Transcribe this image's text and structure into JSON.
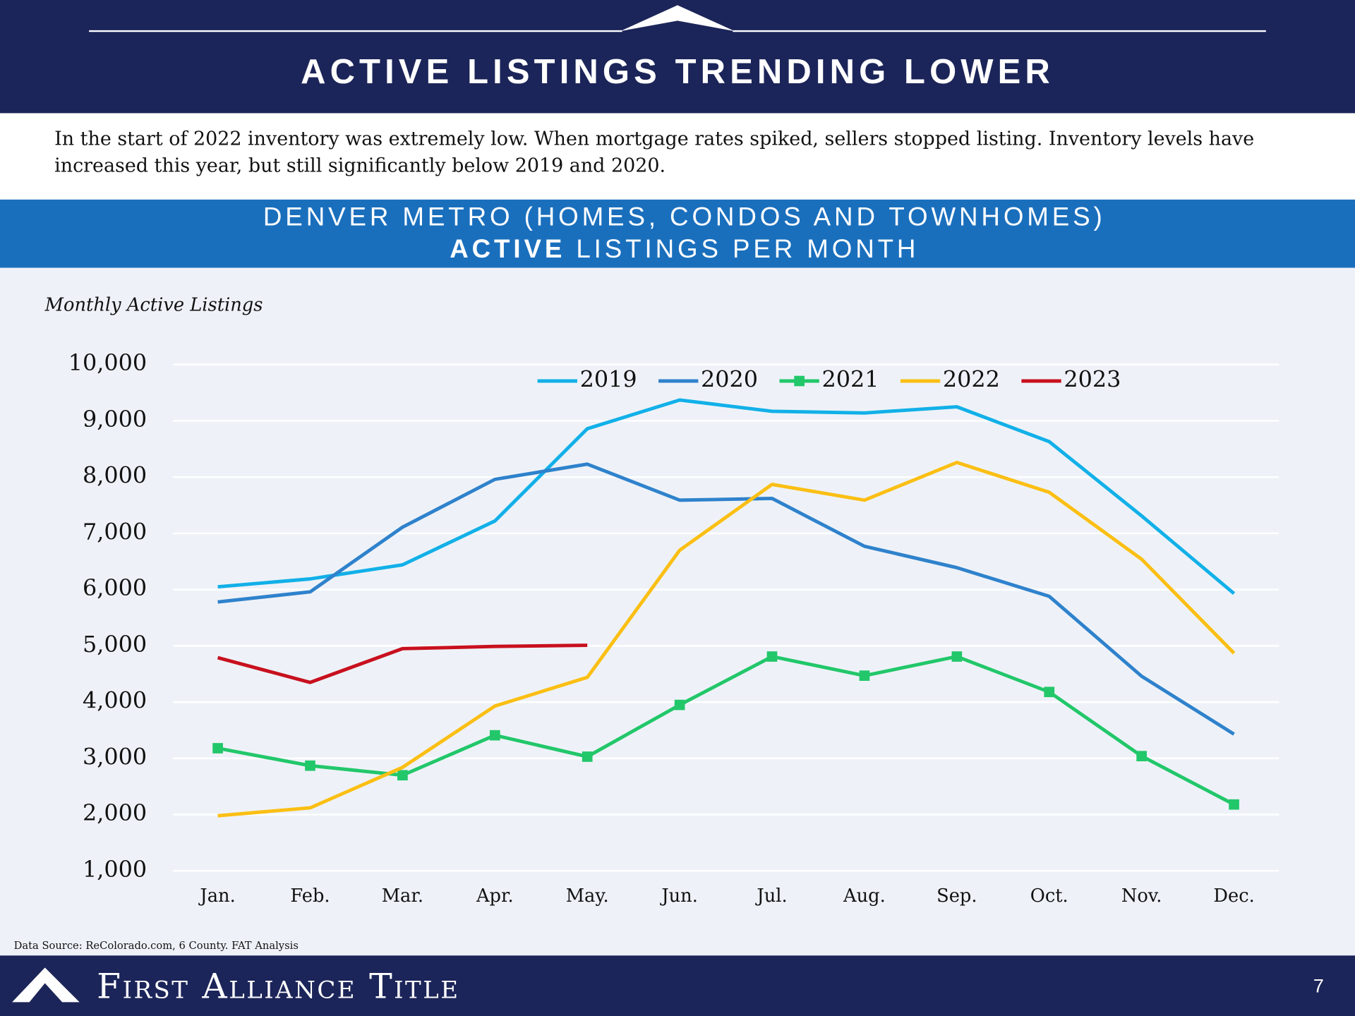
{
  "header": {
    "title": "ACTIVE LISTINGS TRENDING LOWER"
  },
  "description": [
    "In the start of 2022 inventory was extremely low.  When mortgage rates spiked, sellers stopped listing.  Inventory levels have",
    "increased this year, but still significantly below 2019 and 2020."
  ],
  "chart_data": {
    "type": "line",
    "title_line1": "DENVER METRO (HOMES, CONDOS AND TOWNHOMES)",
    "title_bold": "ACTIVE",
    "title_rest": "LISTINGS PER MONTH",
    "y_label": "Monthly Active Listings",
    "categories": [
      "Jan.",
      "Feb.",
      "Mar.",
      "Apr.",
      "May.",
      "Jun.",
      "Jul.",
      "Aug.",
      "Sep.",
      "Oct.",
      "Nov.",
      "Dec."
    ],
    "series": [
      {
        "name": "2019",
        "color": "#12b0e8",
        "marker": "none",
        "values": [
          6050,
          6190,
          6440,
          7220,
          8860,
          9370,
          9170,
          9140,
          9250,
          8630,
          7310,
          5930
        ]
      },
      {
        "name": "2020",
        "color": "#2f82cc",
        "marker": "none",
        "values": [
          5780,
          5960,
          7110,
          7960,
          8230,
          7590,
          7620,
          6770,
          6390,
          5880,
          4460,
          3430
        ]
      },
      {
        "name": "2021",
        "color": "#22c76a",
        "marker": "square",
        "values": [
          3180,
          2870,
          2700,
          3410,
          3030,
          3950,
          4810,
          4470,
          4810,
          4180,
          3040,
          2180
        ]
      },
      {
        "name": "2022",
        "color": "#fbbf14",
        "marker": "none",
        "values": [
          1980,
          2120,
          2840,
          3930,
          4440,
          6700,
          7870,
          7590,
          8260,
          7730,
          6540,
          4870
        ]
      },
      {
        "name": "2023",
        "color": "#c8101e",
        "marker": "none",
        "values": [
          4790,
          4350,
          4950,
          4990,
          5010,
          null,
          null,
          null,
          null,
          null,
          null,
          null
        ]
      }
    ],
    "ylim": [
      1000,
      10000
    ],
    "yticks": [
      {
        "value": 1000,
        "label": "1,000"
      },
      {
        "value": 2000,
        "label": "2,000"
      },
      {
        "value": 3000,
        "label": "3,000"
      },
      {
        "value": 4000,
        "label": "4,000"
      },
      {
        "value": 5000,
        "label": "5,000"
      },
      {
        "value": 6000,
        "label": "6,000"
      },
      {
        "value": 7000,
        "label": "7,000"
      },
      {
        "value": 8000,
        "label": "8,000"
      },
      {
        "value": 9000,
        "label": "9,000"
      },
      {
        "value": 10000,
        "label": "10,000"
      }
    ],
    "grid": true,
    "legend": "top"
  },
  "source": "Data Source: ReColorado.com, 6 County.  FAT Analysis",
  "footer": {
    "company": "First Alliance Title",
    "page": "7"
  }
}
